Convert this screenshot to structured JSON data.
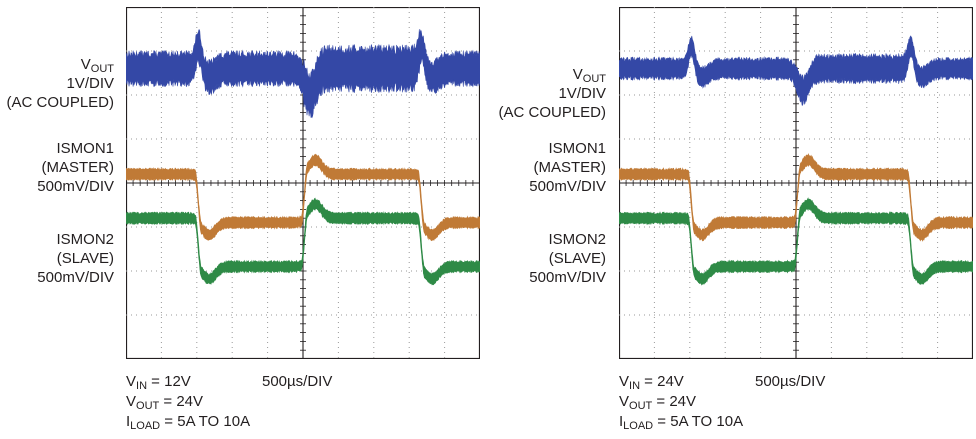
{
  "colors": {
    "vout": "#3448a6",
    "ismon1": "#c07a36",
    "ismon2": "#2e8a46",
    "grid": "#231f20",
    "gridDots": "#9a9a9a"
  },
  "labels": {
    "vout_main": "V",
    "vout_sub": "OUT",
    "vout_scale": "1V/DIV",
    "vout_coupling": "(AC COUPLED)",
    "ismon1_name": "ISMON1",
    "ismon1_role": "(MASTER)",
    "ismon1_scale": "500mV/DIV",
    "ismon2_name": "ISMON2",
    "ismon2_role": "(SLAVE)",
    "ismon2_scale": "500mV/DIV"
  },
  "captions": [
    {
      "vin_main": "V",
      "vin_sub": "IN",
      "vin_value": " = 12V",
      "timebase": "500µs/DIV",
      "vout_main": "V",
      "vout_sub": "OUT",
      "vout_value": " = 24V",
      "iload_main": "I",
      "iload_sub": "LOAD",
      "iload_value": " = 5A TO 10A"
    },
    {
      "vin_main": "V",
      "vin_sub": "IN",
      "vin_value": " = 24V",
      "timebase": "500µs/DIV",
      "vout_main": "V",
      "vout_sub": "OUT",
      "vout_value": " = 24V",
      "iload_main": "I",
      "iload_sub": "LOAD",
      "iload_value": " = 5A TO 10A"
    }
  ],
  "chart_data": [
    {
      "type": "line",
      "grid": {
        "x_divisions": 10,
        "y_divisions": 8
      },
      "events": {
        "step_up_div": 2.0,
        "step_down_div": 5.0,
        "step_up_2_div": 8.3
      },
      "series": [
        {
          "name": "VOUT",
          "color": "#3448a6",
          "offset_div": 6.6,
          "noise_div": 0.55
        },
        {
          "name": "ISMON1",
          "color": "#c07a36",
          "level_low_div": 4.2,
          "level_high_div": 3.1
        },
        {
          "name": "ISMON2",
          "color": "#2e8a46",
          "level_low_div": 3.2,
          "level_high_div": 2.1
        }
      ]
    },
    {
      "type": "line",
      "grid": {
        "x_divisions": 10,
        "y_divisions": 8
      },
      "events": {
        "step_up_div": 2.0,
        "step_down_div": 5.0,
        "step_up_2_div": 8.2
      },
      "series": [
        {
          "name": "VOUT",
          "color": "#3448a6",
          "offset_div": 6.6,
          "noise_div": 0.35
        },
        {
          "name": "ISMON1",
          "color": "#c07a36",
          "level_low_div": 4.2,
          "level_high_div": 3.1
        },
        {
          "name": "ISMON2",
          "color": "#2e8a46",
          "level_low_div": 3.2,
          "level_high_div": 2.1
        }
      ]
    }
  ]
}
